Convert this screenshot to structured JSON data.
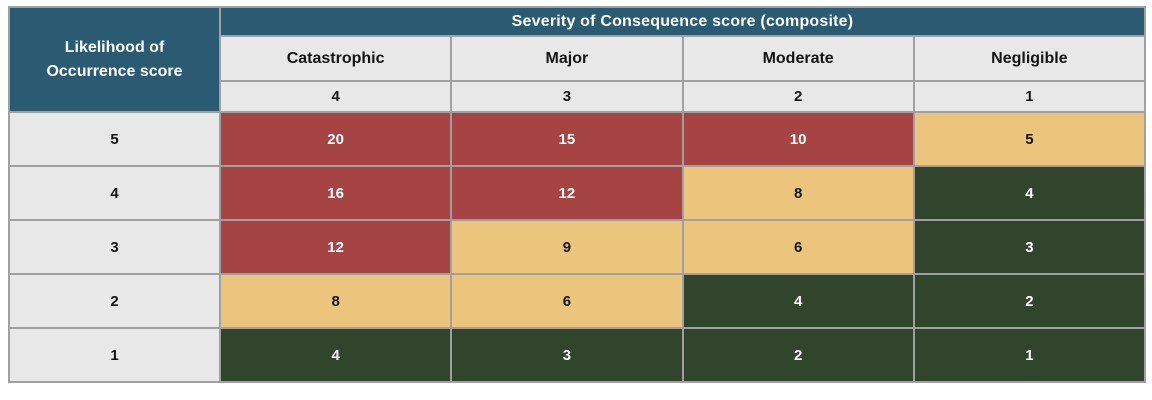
{
  "colors": {
    "page_bg": "#FFFFFF",
    "teal": "#2A5B72",
    "header_cell": "#E8E8E8",
    "high": "#A64444",
    "medium": "#ECC57D",
    "low": "#30452C",
    "border": "#A0A0A0",
    "text_light": "#FFFFFF",
    "text_dark": "#151515"
  },
  "chart_data": {
    "type": "table",
    "row_axis_label": "Likelihood of Occurrence score",
    "column_axis_label": "Severity of Consequence score (composite)",
    "columns": [
      {
        "label": "Catastrophic",
        "score": 4
      },
      {
        "label": "Major",
        "score": 3
      },
      {
        "label": "Moderate",
        "score": 2
      },
      {
        "label": "Negligible",
        "score": 1
      }
    ],
    "row_likelihoods": [
      5,
      4,
      3,
      2,
      1
    ],
    "cell_values": [
      [
        20,
        15,
        10,
        5
      ],
      [
        16,
        12,
        8,
        4
      ],
      [
        12,
        9,
        6,
        3
      ],
      [
        8,
        6,
        4,
        2
      ],
      [
        4,
        3,
        2,
        1
      ]
    ],
    "cell_risk_levels": [
      [
        "high",
        "high",
        "high",
        "medium"
      ],
      [
        "high",
        "high",
        "medium",
        "low"
      ],
      [
        "high",
        "medium",
        "medium",
        "low"
      ],
      [
        "medium",
        "medium",
        "low",
        "low"
      ],
      [
        "low",
        "low",
        "low",
        "low"
      ]
    ],
    "legend_position": "none",
    "grid": true
  }
}
